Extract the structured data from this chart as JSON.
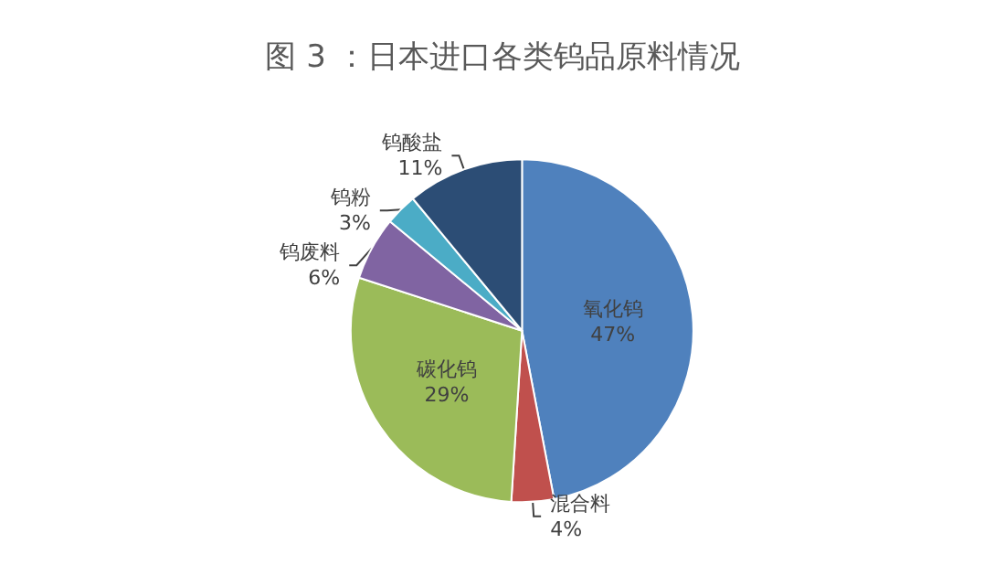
{
  "chart_data": {
    "type": "pie",
    "title": "图 3 ：日本进口各类钨品原料情况",
    "categories": [
      "氧化钨",
      "混合料",
      "碳化钨",
      "钨废料",
      "钨粉",
      "钨酸盐"
    ],
    "values": [
      47,
      4,
      29,
      6,
      3,
      11
    ],
    "colors": [
      "#4f81bd",
      "#c0504d",
      "#9bbb59",
      "#8064a2",
      "#4bacc6",
      "#2c4d75"
    ],
    "value_labels": [
      "47%",
      "4%",
      "29%",
      "6%",
      "3%",
      "11%"
    ],
    "legend": false
  }
}
